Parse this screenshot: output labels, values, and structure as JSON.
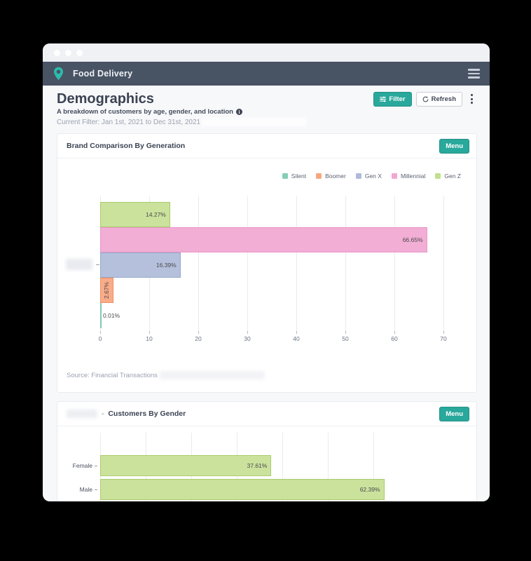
{
  "nav": {
    "app_title": "Food Delivery"
  },
  "header": {
    "title": "Demographics",
    "subtitle": "A breakdown of customers by age, gender, and location",
    "filter_label": "Filter",
    "refresh_label": "Refresh",
    "current_filter": "Current Filter: Jan 1st, 2021 to Dec 31st, 2021"
  },
  "chart_data": [
    {
      "type": "bar",
      "orientation": "horizontal",
      "title": "Brand Comparison By Generation",
      "menu_button": "Menu",
      "legend": [
        {
          "name": "Silent",
          "color": "#85ceb5"
        },
        {
          "name": "Boomer",
          "color": "#f9a77f"
        },
        {
          "name": "Gen X",
          "color": "#afbbdb"
        },
        {
          "name": "Millennial",
          "color": "#f2a7d1"
        },
        {
          "name": "Gen Z",
          "color": "#c2df8e"
        }
      ],
      "bars": [
        {
          "name": "Gen Z",
          "value": 14.27,
          "label": "14.27%",
          "fill": "#cbe29d",
          "border": "#a9cc6b",
          "label_placement": "inside"
        },
        {
          "name": "Millennial",
          "value": 66.65,
          "label": "66.65%",
          "fill": "#f2aed5",
          "border": "#e897c8",
          "label_placement": "inside"
        },
        {
          "name": "Gen X",
          "value": 16.39,
          "label": "16.39%",
          "fill": "#b5c0dc",
          "border": "#97a7ce",
          "label_placement": "inside"
        },
        {
          "name": "Boomer",
          "value": 2.67,
          "label": "2.67%",
          "fill": "#f9ac89",
          "border": "#ef8f61",
          "label_placement": "vertical"
        },
        {
          "name": "Silent",
          "value": 0.01,
          "label": "0.01%",
          "fill": "#7ecbb2",
          "border": "#7ecbb2",
          "label_placement": "outside"
        }
      ],
      "xlim": [
        0,
        70
      ],
      "x_ticks": [
        0,
        10,
        20,
        30,
        40,
        50,
        60,
        70
      ],
      "y_axis_label_redacted": true,
      "source": "Source: Financial Transactions",
      "grid": true,
      "legend_position": "top-right"
    },
    {
      "type": "bar",
      "orientation": "horizontal",
      "title": "Customers By Gender",
      "title_prefix_redacted": true,
      "title_separator": "-",
      "menu_button": "Menu",
      "categories": [
        "Female",
        "Male"
      ],
      "values": [
        37.61,
        62.39
      ],
      "bars": [
        {
          "name": "Female",
          "value": 37.61,
          "label": "37.61%",
          "fill": "#cbe29d",
          "border": "#a9cc6b",
          "label_placement": "inside"
        },
        {
          "name": "Male",
          "value": 62.39,
          "label": "62.39%",
          "fill": "#cbe29d",
          "border": "#a9cc6b",
          "label_placement": "inside"
        }
      ],
      "xlim": [
        0,
        60
      ],
      "x_ticks": [
        0,
        10,
        20,
        30,
        40,
        50,
        60
      ],
      "x_tick_labels_visible": false,
      "grid": true
    }
  ]
}
